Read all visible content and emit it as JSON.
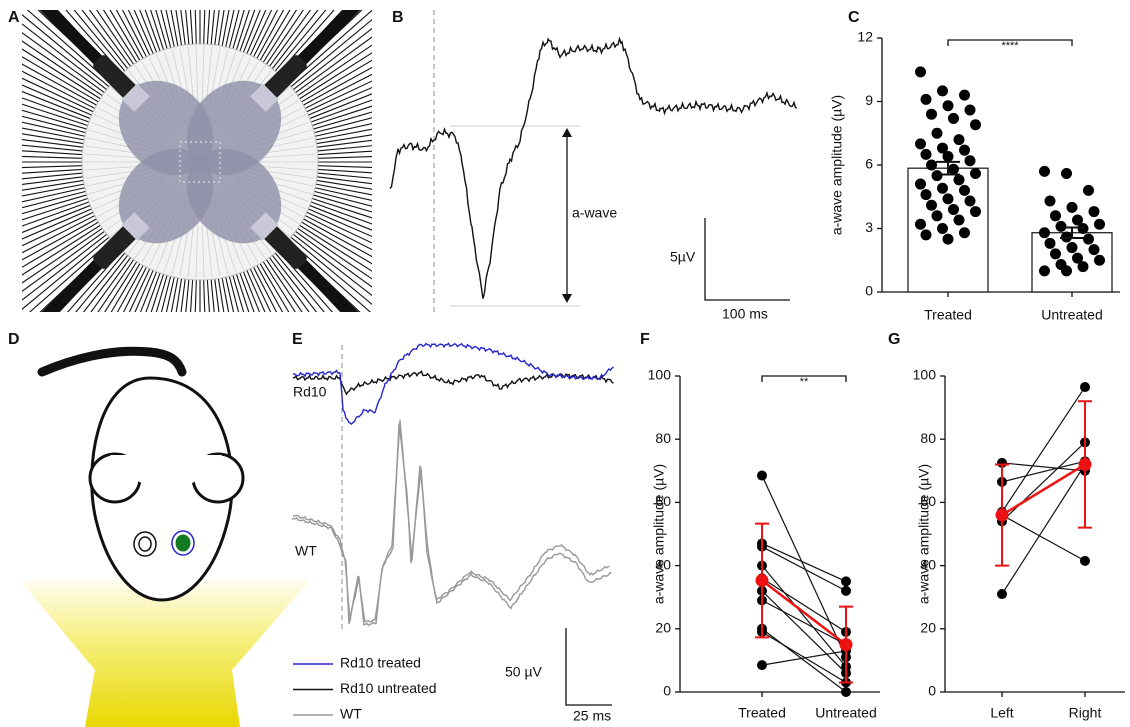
{
  "panel_labels": [
    "A",
    "B",
    "C",
    "D",
    "E",
    "F",
    "G"
  ],
  "panel_b": {
    "annotation": "a-wave",
    "scale_y": "5µV",
    "scale_x": "100 ms"
  },
  "panel_e": {
    "trace_labels": [
      "Rd10",
      "WT"
    ],
    "scale_y": "50 µV",
    "scale_x": "25 ms",
    "legend": [
      {
        "name": "Rd10 treated",
        "color": "#2626d0"
      },
      {
        "name": "Rd10 untreated",
        "color": "#111111"
      },
      {
        "name": "WT",
        "color": "#999999"
      }
    ]
  },
  "chart_data": [
    {
      "type": "bar",
      "y_label": "a-wave amplitude (µV)",
      "categories": [
        "Treated",
        "Untreated"
      ],
      "values": [
        5.85,
        2.8
      ],
      "errors": [
        0.3,
        0.25
      ],
      "color": "#ffffff",
      "point_color": "#000000",
      "points": [
        [
          10.4,
          9.5,
          9.3,
          9.1,
          8.8,
          8.6,
          8.4,
          8.2,
          7.9,
          7.5,
          7.2,
          7.0,
          6.8,
          6.7,
          6.5,
          6.4,
          6.2,
          6.0,
          5.8,
          5.6,
          5.5,
          5.3,
          5.1,
          4.9,
          4.8,
          4.6,
          4.4,
          4.3,
          4.1,
          3.9,
          3.8,
          3.6,
          3.4,
          3.2,
          3.0,
          2.8,
          2.7,
          2.5
        ],
        [
          5.7,
          5.6,
          4.8,
          4.3,
          4.0,
          3.8,
          3.6,
          3.4,
          3.2,
          3.1,
          3.0,
          2.8,
          2.6,
          2.5,
          2.3,
          2.1,
          2.0,
          1.8,
          1.6,
          1.5,
          1.3,
          1.2,
          1.0,
          1.0
        ]
      ],
      "significance": "****",
      "ylim": [
        0,
        12
      ],
      "yticks": [
        0,
        3,
        6,
        9,
        12
      ]
    },
    {
      "type": "paired",
      "y_label": "a-wave amplitude (µV)",
      "categories": [
        "Treated",
        "Untreated"
      ],
      "pairs": [
        [
          68.5,
          11
        ],
        [
          47,
          35
        ],
        [
          46,
          32
        ],
        [
          40,
          8
        ],
        [
          36,
          19
        ],
        [
          32,
          6
        ],
        [
          29,
          15
        ],
        [
          20,
          0
        ],
        [
          19,
          3
        ],
        [
          8.5,
          13
        ]
      ],
      "point_color": "#000000",
      "mean": {
        "values": [
          35.3,
          15
        ],
        "errors": [
          18,
          12
        ],
        "color": "#ee1111"
      },
      "significance": "**",
      "ylim": [
        0,
        100
      ],
      "yticks": [
        0,
        20,
        40,
        60,
        80,
        100
      ]
    },
    {
      "type": "paired",
      "y_label": "a-wave amplitude (µV)",
      "categories": [
        "Left",
        "Right"
      ],
      "pairs": [
        [
          31,
          72
        ],
        [
          54,
          79
        ],
        [
          56,
          41.5
        ],
        [
          66.5,
          73
        ],
        [
          72.5,
          70
        ],
        [
          57,
          96.5
        ]
      ],
      "point_color": "#000000",
      "mean": {
        "values": [
          56,
          72
        ],
        "errors": [
          16,
          20
        ],
        "color": "#ee1111"
      },
      "ylim": [
        0,
        100
      ],
      "yticks": [
        0,
        20,
        40,
        60,
        80,
        100
      ]
    }
  ]
}
